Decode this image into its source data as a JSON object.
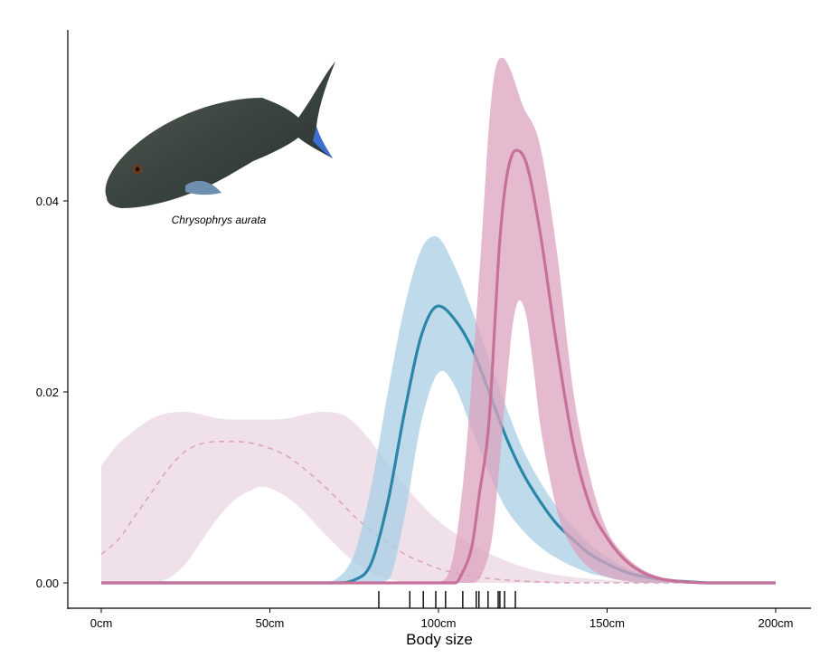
{
  "chart_data": {
    "type": "area",
    "title": "",
    "xlabel": "Body size",
    "ylabel": "",
    "xlim": [
      -10,
      210
    ],
    "ylim": [
      -0.0028,
      0.0565
    ],
    "x_ticks": [
      0,
      50,
      100,
      150,
      200
    ],
    "x_tick_labels": [
      "0cm",
      "50cm",
      "100cm",
      "150cm",
      "200cm"
    ],
    "y_ticks": [
      0,
      0.02,
      0.04
    ],
    "y_tick_labels": [
      "0.00",
      "0.02",
      "0.04"
    ],
    "grid": false,
    "legend": "none",
    "annotation": "Chrysophrys aurata",
    "colors": {
      "light_pink_band": "#ebd5e1",
      "light_pink_line": "#d9a7be",
      "blue_band": "#a9cfe4",
      "blue_line": "#2b86a9",
      "pink_band": "#dca3bd",
      "pink_line": "#c6709a"
    },
    "series": [
      {
        "name": "light-pink-ribbon",
        "style": "band",
        "color_key": "light_pink_band",
        "upper": [
          [
            0,
            0.0123
          ],
          [
            5,
            0.0145
          ],
          [
            10,
            0.016
          ],
          [
            15,
            0.0172
          ],
          [
            20,
            0.0178
          ],
          [
            25,
            0.0179
          ],
          [
            30,
            0.0176
          ],
          [
            35,
            0.0172
          ],
          [
            40,
            0.0171
          ],
          [
            50,
            0.0171
          ],
          [
            55,
            0.0172
          ],
          [
            60,
            0.0176
          ],
          [
            65,
            0.0179
          ],
          [
            70,
            0.0178
          ],
          [
            75,
            0.0168
          ],
          [
            80,
            0.0148
          ],
          [
            85,
            0.0125
          ],
          [
            90,
            0.0102
          ],
          [
            95,
            0.0082
          ],
          [
            100,
            0.0065
          ],
          [
            110,
            0.004
          ],
          [
            120,
            0.0023
          ],
          [
            130,
            0.0012
          ],
          [
            140,
            0.0006
          ],
          [
            150,
            0.0003
          ],
          [
            160,
            0.0001
          ],
          [
            170,
            0
          ]
        ],
        "lower": [
          [
            0,
            0
          ],
          [
            15,
            0
          ],
          [
            20,
            0.0005
          ],
          [
            25,
            0.002
          ],
          [
            30,
            0.0045
          ],
          [
            35,
            0.007
          ],
          [
            40,
            0.0088
          ],
          [
            45,
            0.0098
          ],
          [
            48,
            0.0101
          ],
          [
            50,
            0.0099
          ],
          [
            55,
            0.009
          ],
          [
            60,
            0.0075
          ],
          [
            65,
            0.0056
          ],
          [
            70,
            0.0038
          ],
          [
            75,
            0.0022
          ],
          [
            80,
            0.001
          ],
          [
            85,
            0.0004
          ],
          [
            90,
            0.0001
          ],
          [
            95,
            0
          ],
          [
            170,
            0
          ]
        ]
      },
      {
        "name": "light-pink-mean",
        "style": "dashed",
        "color_key": "light_pink_line",
        "points": [
          [
            0,
            0.003
          ],
          [
            5,
            0.0045
          ],
          [
            10,
            0.007
          ],
          [
            15,
            0.0095
          ],
          [
            20,
            0.012
          ],
          [
            25,
            0.0138
          ],
          [
            30,
            0.0146
          ],
          [
            35,
            0.0148
          ],
          [
            40,
            0.0148
          ],
          [
            45,
            0.0146
          ],
          [
            50,
            0.0141
          ],
          [
            55,
            0.0133
          ],
          [
            60,
            0.012
          ],
          [
            65,
            0.0105
          ],
          [
            70,
            0.0088
          ],
          [
            75,
            0.007
          ],
          [
            80,
            0.0055
          ],
          [
            85,
            0.0042
          ],
          [
            90,
            0.003
          ],
          [
            95,
            0.0022
          ],
          [
            100,
            0.0015
          ],
          [
            110,
            0.0007
          ],
          [
            120,
            0.0003
          ],
          [
            130,
            0.0001
          ],
          [
            140,
            0
          ],
          [
            200,
            0
          ]
        ]
      },
      {
        "name": "blue-ribbon",
        "style": "band",
        "color_key": "blue_band",
        "upper": [
          [
            65,
            0
          ],
          [
            70,
            0.0005
          ],
          [
            75,
            0.003
          ],
          [
            80,
            0.01
          ],
          [
            85,
            0.02
          ],
          [
            90,
            0.029
          ],
          [
            95,
            0.035
          ],
          [
            99,
            0.0363
          ],
          [
            105,
            0.033
          ],
          [
            110,
            0.0285
          ],
          [
            115,
            0.0235
          ],
          [
            120,
            0.0185
          ],
          [
            125,
            0.014
          ],
          [
            130,
            0.0107
          ],
          [
            135,
            0.008
          ],
          [
            140,
            0.0058
          ],
          [
            145,
            0.004
          ],
          [
            150,
            0.0027
          ],
          [
            155,
            0.0017
          ],
          [
            160,
            0.001
          ],
          [
            165,
            0.0006
          ],
          [
            170,
            0.0003
          ],
          [
            175,
            0.0001
          ],
          [
            180,
            0
          ],
          [
            200,
            0
          ]
        ],
        "lower": [
          [
            65,
            0
          ],
          [
            80,
            0
          ],
          [
            85,
            0.0003
          ],
          [
            90,
            0.007
          ],
          [
            95,
            0.017
          ],
          [
            101,
            0.0222
          ],
          [
            105,
            0.0205
          ],
          [
            110,
            0.016
          ],
          [
            115,
            0.0115
          ],
          [
            120,
            0.0078
          ],
          [
            125,
            0.0055
          ],
          [
            130,
            0.0038
          ],
          [
            135,
            0.0026
          ],
          [
            140,
            0.0017
          ],
          [
            145,
            0.001
          ],
          [
            150,
            0.0006
          ],
          [
            155,
            0.0003
          ],
          [
            160,
            0.0001
          ],
          [
            165,
            0
          ],
          [
            200,
            0
          ]
        ]
      },
      {
        "name": "blue-mean",
        "style": "solid",
        "color_key": "blue_line",
        "points": [
          [
            0,
            0
          ],
          [
            70,
            0
          ],
          [
            75,
            0.0003
          ],
          [
            80,
            0.002
          ],
          [
            85,
            0.0085
          ],
          [
            90,
            0.018
          ],
          [
            95,
            0.026
          ],
          [
            100,
            0.029
          ],
          [
            105,
            0.0275
          ],
          [
            110,
            0.0245
          ],
          [
            115,
            0.02
          ],
          [
            120,
            0.0153
          ],
          [
            125,
            0.0115
          ],
          [
            130,
            0.0086
          ],
          [
            135,
            0.0062
          ],
          [
            140,
            0.0045
          ],
          [
            145,
            0.003
          ],
          [
            150,
            0.002
          ],
          [
            155,
            0.0012
          ],
          [
            160,
            0.0007
          ],
          [
            165,
            0.0004
          ],
          [
            170,
            0.0002
          ],
          [
            175,
            0.0001
          ],
          [
            180,
            0
          ],
          [
            200,
            0
          ]
        ]
      },
      {
        "name": "pink-ribbon",
        "style": "band",
        "color_key": "pink_band",
        "upper": [
          [
            100,
            0
          ],
          [
            103,
            0.001
          ],
          [
            105,
            0.004
          ],
          [
            108,
            0.013
          ],
          [
            110,
            0.022
          ],
          [
            113,
            0.037
          ],
          [
            115,
            0.048
          ],
          [
            117,
            0.054
          ],
          [
            119,
            0.055
          ],
          [
            121,
            0.054
          ],
          [
            125,
            0.05
          ],
          [
            130,
            0.046
          ],
          [
            135,
            0.035
          ],
          [
            140,
            0.02
          ],
          [
            145,
            0.011
          ],
          [
            150,
            0.0055
          ],
          [
            155,
            0.003
          ],
          [
            160,
            0.0015
          ],
          [
            165,
            0.0007
          ],
          [
            170,
            0.0003
          ],
          [
            180,
            0.0001
          ],
          [
            200,
            0
          ]
        ],
        "lower": [
          [
            100,
            0
          ],
          [
            110,
            0
          ],
          [
            113,
            0.001
          ],
          [
            116,
            0.005
          ],
          [
            118,
            0.012
          ],
          [
            120,
            0.02
          ],
          [
            122,
            0.027
          ],
          [
            124,
            0.0296
          ],
          [
            126,
            0.028
          ],
          [
            128,
            0.023
          ],
          [
            130,
            0.017
          ],
          [
            133,
            0.011
          ],
          [
            136,
            0.0065
          ],
          [
            140,
            0.0035
          ],
          [
            145,
            0.0015
          ],
          [
            150,
            0.0006
          ],
          [
            155,
            0.0002
          ],
          [
            160,
            0
          ],
          [
            200,
            0
          ]
        ]
      },
      {
        "name": "pink-mean",
        "style": "solid",
        "color_key": "pink_line",
        "points": [
          [
            0,
            0
          ],
          [
            105,
            0
          ],
          [
            107,
            0.001
          ],
          [
            110,
            0.004
          ],
          [
            112,
            0.009
          ],
          [
            115,
            0.017
          ],
          [
            117,
            0.029
          ],
          [
            118,
            0.035
          ],
          [
            120,
            0.042
          ],
          [
            123,
            0.0453
          ],
          [
            126,
            0.044
          ],
          [
            130,
            0.037
          ],
          [
            135,
            0.025
          ],
          [
            140,
            0.0145
          ],
          [
            145,
            0.008
          ],
          [
            150,
            0.0047
          ],
          [
            155,
            0.0025
          ],
          [
            160,
            0.0012
          ],
          [
            165,
            0.0005
          ],
          [
            170,
            0.0002
          ],
          [
            180,
            0
          ],
          [
            200,
            0
          ]
        ]
      }
    ],
    "rug": [
      82.3,
      91.5,
      95.5,
      99.2,
      102.1,
      107.2,
      111.2,
      112.0,
      114.7,
      117.7,
      118.2,
      119.6,
      122.8
    ]
  }
}
